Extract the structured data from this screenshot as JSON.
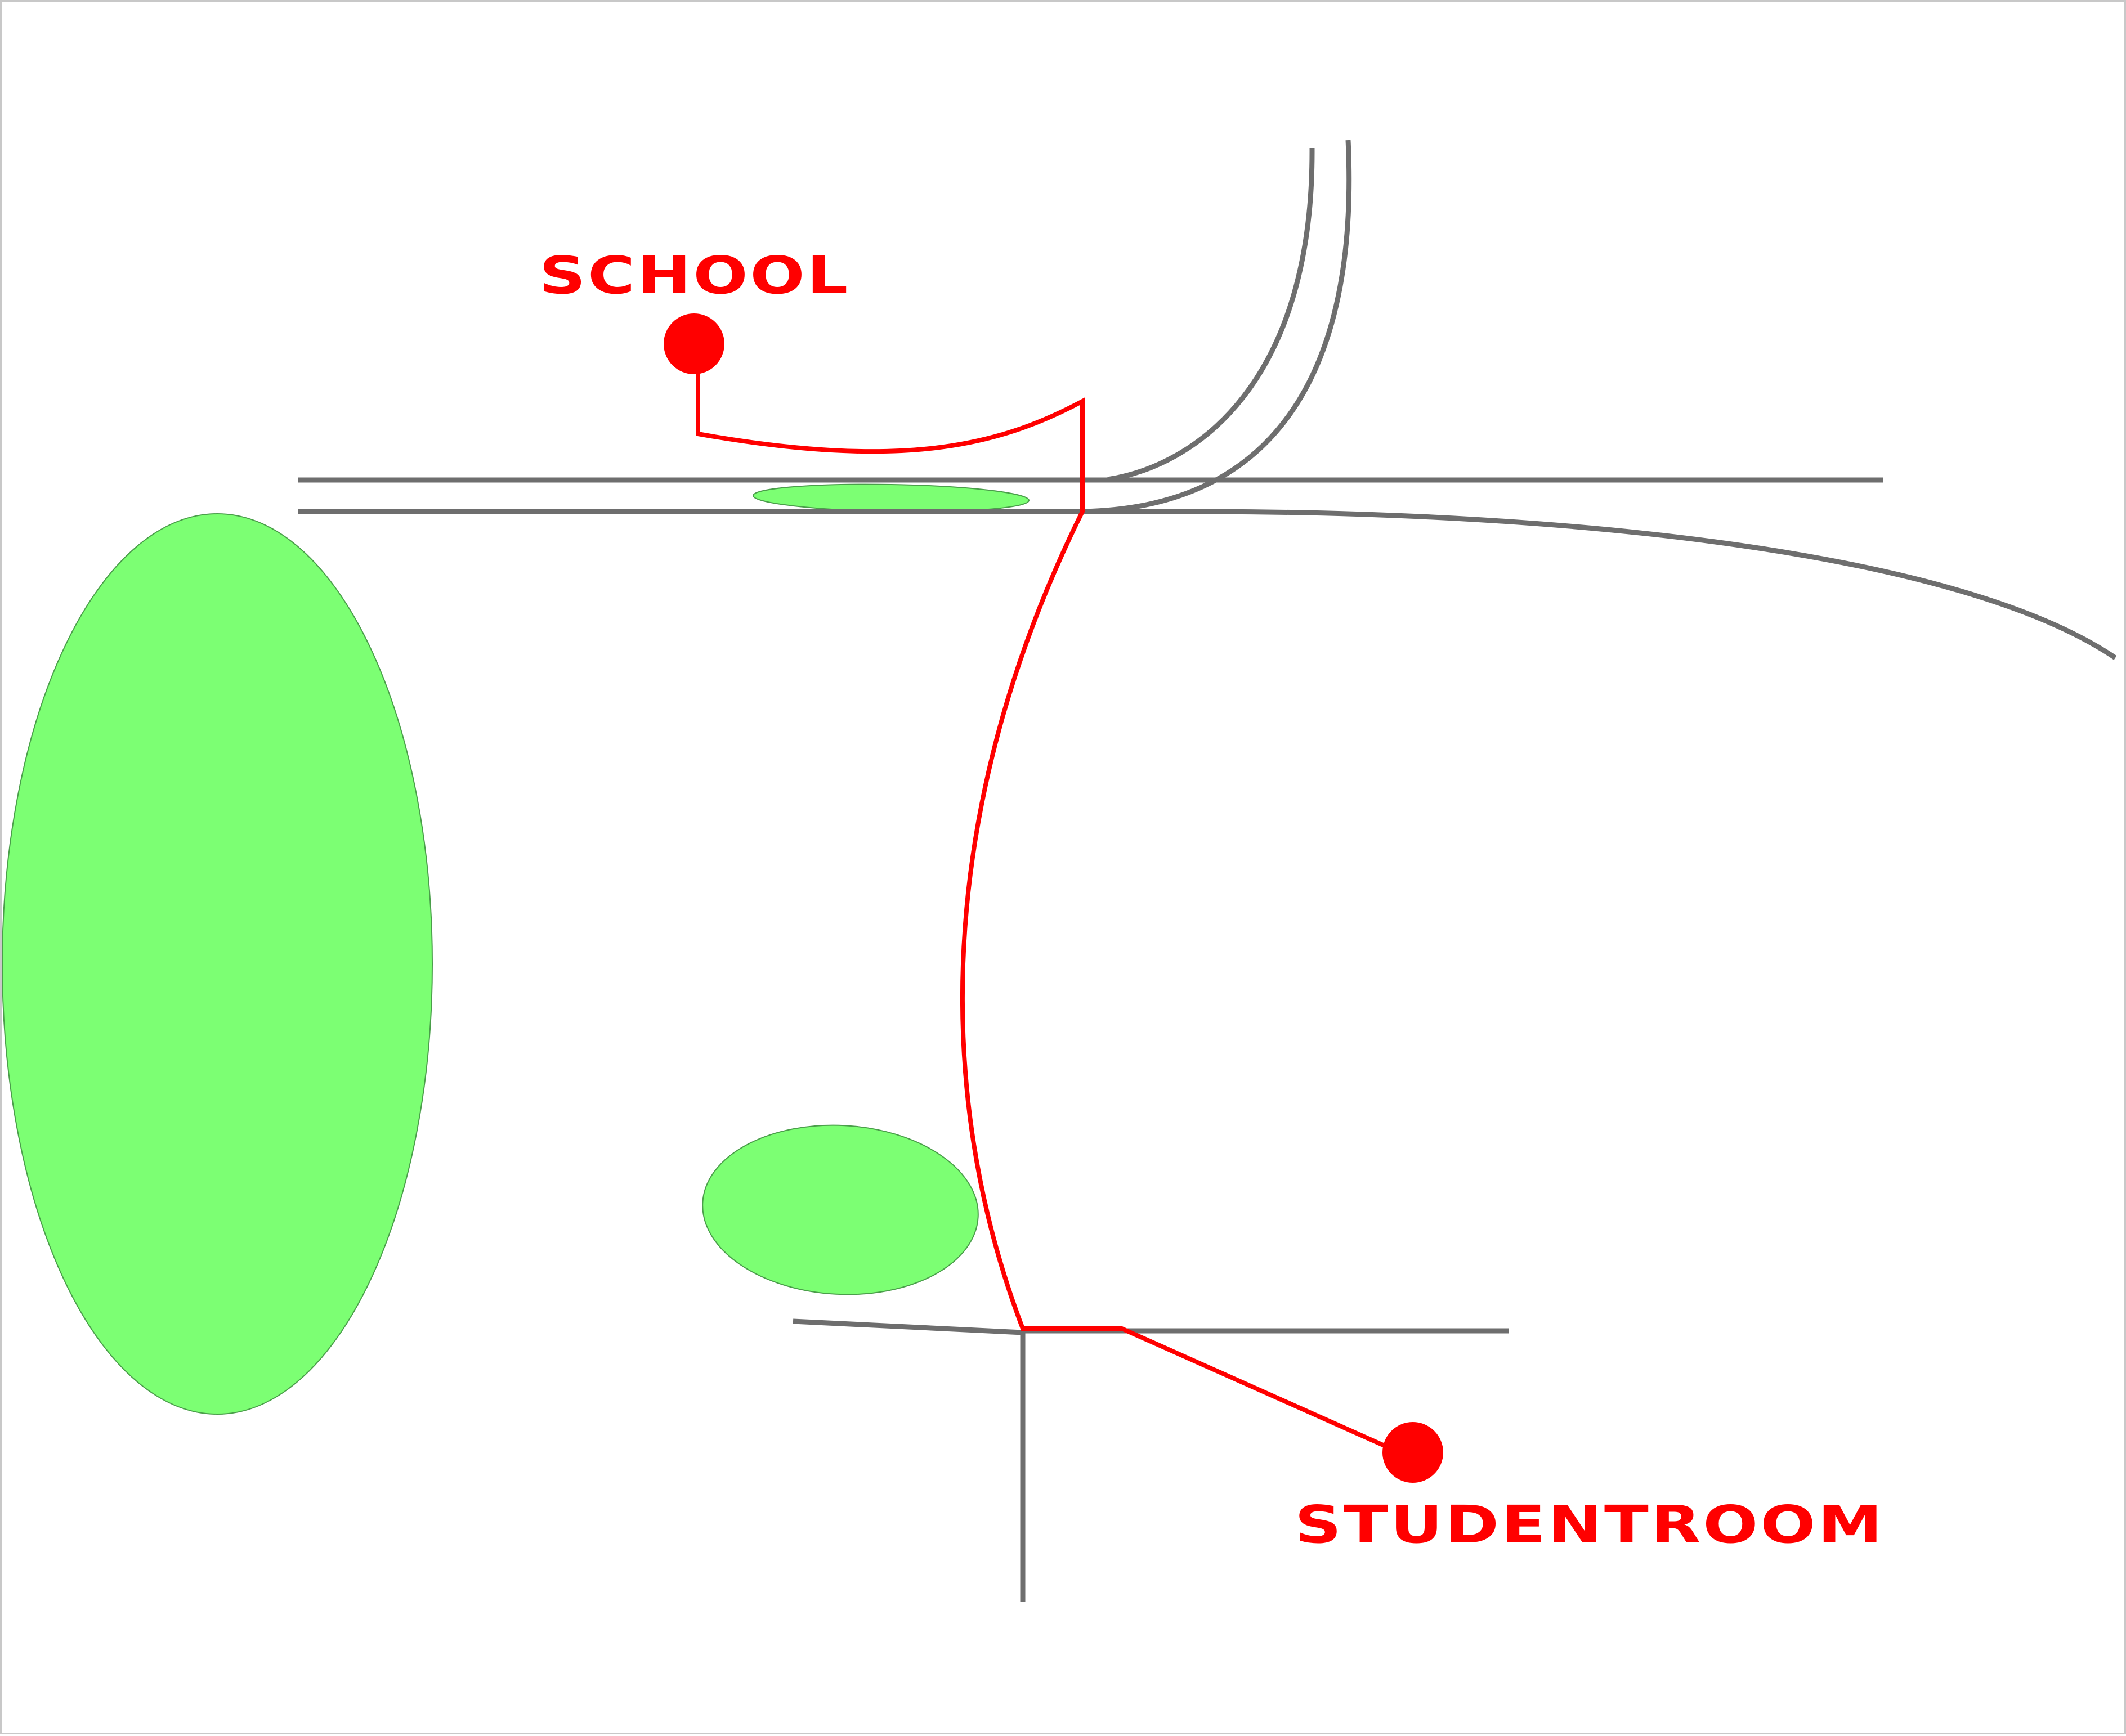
{
  "map": {
    "colors": {
      "road": "#6e6e6e",
      "route": "#ff0000",
      "park": "#7cff73",
      "marker": "#ff0000",
      "label": "#ff0000",
      "frame": "#c8c8c8",
      "background": "#ffffff"
    },
    "places": [
      {
        "id": "school",
        "name": "SCHOOL",
        "marker": "red-dot"
      },
      {
        "id": "studentroom",
        "name": "STUDENTROOM",
        "marker": "red-dot"
      }
    ]
  }
}
